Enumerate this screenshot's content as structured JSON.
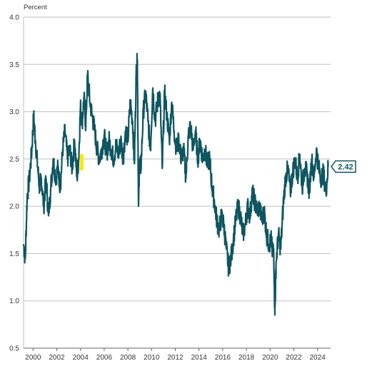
{
  "chart_data": {
    "type": "line",
    "title": "",
    "xlabel": "",
    "ylabel": "Percent",
    "ylim": [
      0.5,
      4.0
    ],
    "xlim": [
      1999.2,
      2025.1
    ],
    "grid": "horizontal",
    "yticks": [
      "0.5",
      "1.0",
      "1.5",
      "2.0",
      "2.5",
      "3.0",
      "3.5",
      "4.0"
    ],
    "xticks": [
      "2000",
      "2002",
      "2004",
      "2006",
      "2008",
      "2010",
      "2012",
      "2014",
      "2016",
      "2018",
      "2020",
      "2022",
      "2024"
    ],
    "callout_label": "2.42",
    "series": [
      {
        "color": "#0e5560",
        "x": [
          1999.2,
          1999.35,
          1999.5,
          1999.7,
          1999.9,
          2000.05,
          2000.2,
          2000.4,
          2000.55,
          2000.7,
          2000.9,
          2001.1,
          2001.3,
          2001.5,
          2001.7,
          2001.9,
          2002.1,
          2002.3,
          2002.5,
          2002.7,
          2002.9,
          2003.1,
          2003.3,
          2003.5,
          2003.7,
          2003.85,
          2004.0,
          2004.15,
          2004.3,
          2004.45,
          2004.6,
          2004.8,
          2005.0,
          2005.2,
          2005.4,
          2005.6,
          2005.8,
          2006.0,
          2006.2,
          2006.4,
          2006.6,
          2006.8,
          2007.0,
          2007.2,
          2007.4,
          2007.6,
          2007.8,
          2008.0,
          2008.2,
          2008.4,
          2008.55,
          2008.7,
          2008.8,
          2008.9,
          2009.0,
          2009.1,
          2009.3,
          2009.5,
          2009.7,
          2009.9,
          2010.1,
          2010.3,
          2010.5,
          2010.7,
          2010.9,
          2011.1,
          2011.3,
          2011.5,
          2011.7,
          2011.9,
          2012.1,
          2012.3,
          2012.5,
          2012.7,
          2012.9,
          2013.1,
          2013.3,
          2013.5,
          2013.7,
          2013.9,
          2014.1,
          2014.3,
          2014.5,
          2014.7,
          2014.9,
          2015.1,
          2015.3,
          2015.5,
          2015.7,
          2015.9,
          2016.1,
          2016.3,
          2016.5,
          2016.7,
          2016.9,
          2017.1,
          2017.3,
          2017.5,
          2017.7,
          2017.9,
          2018.1,
          2018.3,
          2018.5,
          2018.7,
          2018.9,
          2019.1,
          2019.3,
          2019.5,
          2019.7,
          2019.9,
          2020.1,
          2020.2,
          2020.3,
          2020.4,
          2020.5,
          2020.7,
          2020.9,
          2021.1,
          2021.3,
          2021.5,
          2021.7,
          2021.9,
          2022.1,
          2022.3,
          2022.5,
          2022.7,
          2022.9,
          2023.1,
          2023.3,
          2023.5,
          2023.7,
          2023.9,
          2024.1,
          2024.3,
          2024.5,
          2024.7,
          2024.9
        ],
        "y": [
          1.6,
          1.45,
          2.1,
          2.3,
          2.6,
          2.95,
          2.7,
          2.4,
          2.2,
          2.3,
          2.0,
          2.3,
          1.9,
          2.2,
          2.5,
          2.3,
          2.4,
          2.2,
          2.6,
          2.8,
          2.5,
          2.6,
          2.4,
          2.7,
          2.3,
          2.5,
          3.05,
          2.9,
          3.15,
          2.85,
          3.4,
          3.1,
          2.95,
          2.8,
          2.6,
          2.5,
          2.6,
          2.75,
          2.55,
          2.7,
          2.6,
          2.5,
          2.65,
          2.55,
          2.7,
          2.5,
          2.8,
          2.7,
          3.1,
          2.9,
          2.45,
          3.4,
          3.55,
          2.0,
          2.5,
          2.4,
          3.0,
          3.2,
          2.9,
          2.6,
          3.25,
          2.9,
          3.1,
          3.2,
          2.4,
          3.2,
          2.95,
          2.7,
          3.1,
          2.8,
          2.6,
          2.7,
          2.5,
          2.6,
          2.3,
          2.75,
          2.85,
          2.6,
          2.8,
          2.5,
          2.7,
          2.5,
          2.6,
          2.45,
          2.5,
          2.2,
          2.05,
          1.85,
          1.75,
          1.9,
          1.8,
          1.55,
          1.35,
          1.45,
          1.65,
          1.85,
          2.0,
          1.9,
          1.7,
          1.8,
          2.0,
          1.9,
          2.15,
          2.05,
          1.95,
          2.0,
          1.85,
          1.95,
          1.7,
          1.6,
          1.65,
          1.5,
          1.55,
          0.85,
          1.4,
          1.7,
          1.55,
          2.0,
          2.3,
          2.4,
          2.15,
          2.35,
          2.5,
          2.3,
          2.55,
          2.2,
          2.4,
          2.35,
          2.15,
          2.5,
          2.3,
          2.6,
          2.4,
          2.3,
          2.35,
          2.15,
          2.42
        ]
      }
    ]
  },
  "colors": {
    "line": "#0e5560",
    "grid": "#bfbfbf",
    "axis": "#666666",
    "highlight": "#ffe600"
  }
}
